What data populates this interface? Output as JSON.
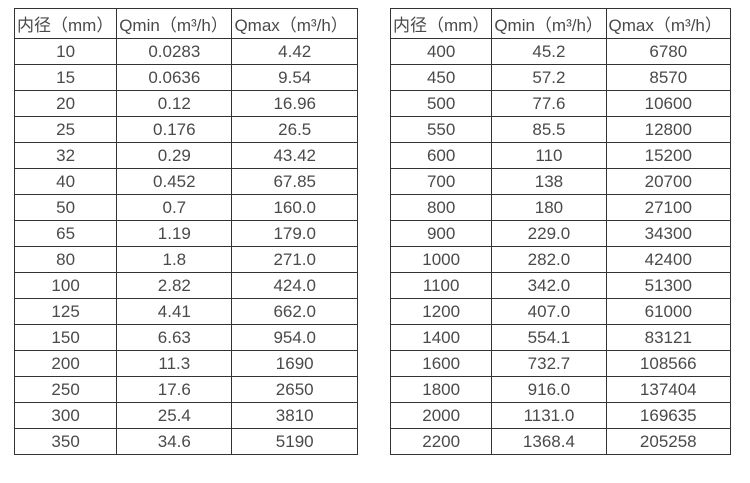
{
  "page": {
    "background": "#ffffff",
    "text_color": "#4a4a4a",
    "border_color": "#333333"
  },
  "tables": [
    {
      "name": "flow-rate-table-small-diameters",
      "headers": [
        "内径（mm）",
        "Qmin（m³/h）",
        "Qmax（m³/h）"
      ],
      "rows": [
        [
          "10",
          "0.0283",
          "4.42"
        ],
        [
          "15",
          "0.0636",
          "9.54"
        ],
        [
          "20",
          "0.12",
          "16.96"
        ],
        [
          "25",
          "0.176",
          "26.5"
        ],
        [
          "32",
          "0.29",
          "43.42"
        ],
        [
          "40",
          "0.452",
          "67.85"
        ],
        [
          "50",
          "0.7",
          "160.0"
        ],
        [
          "65",
          "1.19",
          "179.0"
        ],
        [
          "80",
          "1.8",
          "271.0"
        ],
        [
          "100",
          "2.82",
          "424.0"
        ],
        [
          "125",
          "4.41",
          "662.0"
        ],
        [
          "150",
          "6.63",
          "954.0"
        ],
        [
          "200",
          "11.3",
          "1690"
        ],
        [
          "250",
          "17.6",
          "2650"
        ],
        [
          "300",
          "25.4",
          "3810"
        ],
        [
          "350",
          "34.6",
          "5190"
        ]
      ]
    },
    {
      "name": "flow-rate-table-large-diameters",
      "headers": [
        "内径（mm）",
        "Qmin（m³/h）",
        "Qmax（m³/h）"
      ],
      "rows": [
        [
          "400",
          "45.2",
          "6780"
        ],
        [
          "450",
          "57.2",
          "8570"
        ],
        [
          "500",
          "77.6",
          "10600"
        ],
        [
          "550",
          "85.5",
          "12800"
        ],
        [
          "600",
          "110",
          "15200"
        ],
        [
          "700",
          "138",
          "20700"
        ],
        [
          "800",
          "180",
          "27100"
        ],
        [
          "900",
          "229.0",
          "34300"
        ],
        [
          "1000",
          "282.0",
          "42400"
        ],
        [
          "1100",
          "342.0",
          "51300"
        ],
        [
          "1200",
          "407.0",
          "61000"
        ],
        [
          "1400",
          "554.1",
          "83121"
        ],
        [
          "1600",
          "732.7",
          "108566"
        ],
        [
          "1800",
          "916.0",
          "137404"
        ],
        [
          "2000",
          "1131.0",
          "169635"
        ],
        [
          "2200",
          "1368.4",
          "205258"
        ]
      ]
    }
  ]
}
